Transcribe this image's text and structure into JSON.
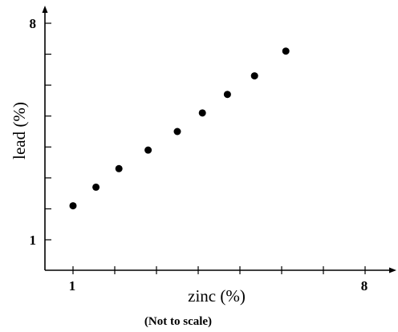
{
  "chart_data": {
    "type": "scatter",
    "title": "",
    "xlabel": "zinc (%)",
    "ylabel": "lead (%)",
    "note": "(Not to scale)",
    "xlim": [
      0.1,
      9.1
    ],
    "ylim": [
      0,
      8.7
    ],
    "x_tick_labels": [
      {
        "value": 1,
        "label": "1"
      },
      {
        "value": 8,
        "label": "8"
      }
    ],
    "y_tick_labels": [
      {
        "value": 1,
        "label": "1"
      },
      {
        "value": 8,
        "label": "8"
      }
    ],
    "x_ticks": [
      1,
      2,
      3,
      4,
      5,
      6,
      7,
      8,
      9
    ],
    "y_ticks": [
      1,
      2,
      3,
      4,
      5,
      6,
      7,
      8
    ],
    "grid": false,
    "legend": "none",
    "points": [
      {
        "x": 1.0,
        "y": 2.1
      },
      {
        "x": 1.55,
        "y": 2.7
      },
      {
        "x": 2.1,
        "y": 3.3
      },
      {
        "x": 2.8,
        "y": 3.9
      },
      {
        "x": 3.5,
        "y": 4.5
      },
      {
        "x": 4.1,
        "y": 5.1
      },
      {
        "x": 4.7,
        "y": 5.7
      },
      {
        "x": 5.35,
        "y": 6.3
      },
      {
        "x": 6.1,
        "y": 7.1
      }
    ]
  }
}
